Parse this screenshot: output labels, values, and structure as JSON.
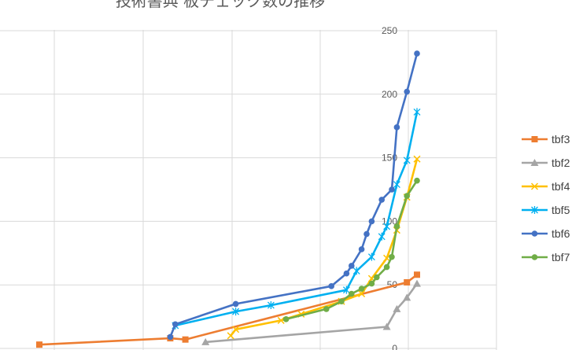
{
  "chart_data": {
    "type": "line",
    "title": "技術書典 板チェック数の推移",
    "xlabel": "",
    "ylabel": "",
    "ylim": [
      0,
      250
    ],
    "yticks": [
      0,
      50,
      100,
      150,
      200,
      250
    ],
    "grid": true,
    "legend": "right",
    "series": [
      {
        "name": "tbf3",
        "color": "#ED7D31",
        "marker": "square",
        "points": [
          [
            -30,
            3
          ],
          [
            -19.6,
            8
          ],
          [
            -18.4,
            7
          ],
          [
            -0.8,
            52
          ],
          [
            0,
            58
          ]
        ]
      },
      {
        "name": "tbf2",
        "color": "#A5A5A5",
        "marker": "triangle",
        "points": [
          [
            -16.8,
            5
          ],
          [
            -2.4,
            17
          ],
          [
            -1.6,
            31
          ],
          [
            -0.8,
            40
          ],
          [
            0,
            51
          ]
        ]
      },
      {
        "name": "tbf4",
        "color": "#FFC000",
        "marker": "x",
        "points": [
          [
            -14.8,
            10
          ],
          [
            -14.4,
            15
          ],
          [
            -10.8,
            22
          ],
          [
            -9.2,
            27
          ],
          [
            -6,
            37
          ],
          [
            -4.4,
            43
          ],
          [
            -3.6,
            55
          ],
          [
            -2.4,
            71
          ],
          [
            -1.6,
            93
          ],
          [
            -0.8,
            119
          ],
          [
            0,
            149
          ]
        ]
      },
      {
        "name": "tbf5",
        "color": "#00B0F0",
        "marker": "star",
        "points": [
          [
            -19.2,
            18
          ],
          [
            -14.4,
            29
          ],
          [
            -11.6,
            34
          ],
          [
            -5.6,
            46
          ],
          [
            -4.8,
            61
          ],
          [
            -3.6,
            72
          ],
          [
            -2.8,
            88
          ],
          [
            -2.4,
            96
          ],
          [
            -1.6,
            129
          ],
          [
            -0.8,
            148
          ],
          [
            0,
            186
          ]
        ]
      },
      {
        "name": "tbf6",
        "color": "#4472C4",
        "marker": "circle",
        "points": [
          [
            -19.6,
            9
          ],
          [
            -19.2,
            19
          ],
          [
            -14.4,
            35
          ],
          [
            -6.8,
            49
          ],
          [
            -5.6,
            59
          ],
          [
            -5.2,
            65
          ],
          [
            -4.4,
            78
          ],
          [
            -4,
            90
          ],
          [
            -3.6,
            100
          ],
          [
            -2.8,
            117
          ],
          [
            -2,
            125
          ],
          [
            -1.6,
            174
          ],
          [
            -0.8,
            202
          ],
          [
            0,
            232
          ]
        ]
      },
      {
        "name": "tbf7",
        "color": "#70AD47",
        "marker": "circle",
        "points": [
          [
            -10.4,
            23
          ],
          [
            -7.2,
            31
          ],
          [
            -6,
            37
          ],
          [
            -5.2,
            43
          ],
          [
            -4.4,
            47
          ],
          [
            -3.6,
            51
          ],
          [
            -3.2,
            56
          ],
          [
            -2.4,
            64
          ],
          [
            -2,
            72
          ],
          [
            -1.6,
            96
          ],
          [
            -0.8,
            120
          ],
          [
            0,
            132
          ]
        ]
      }
    ]
  }
}
